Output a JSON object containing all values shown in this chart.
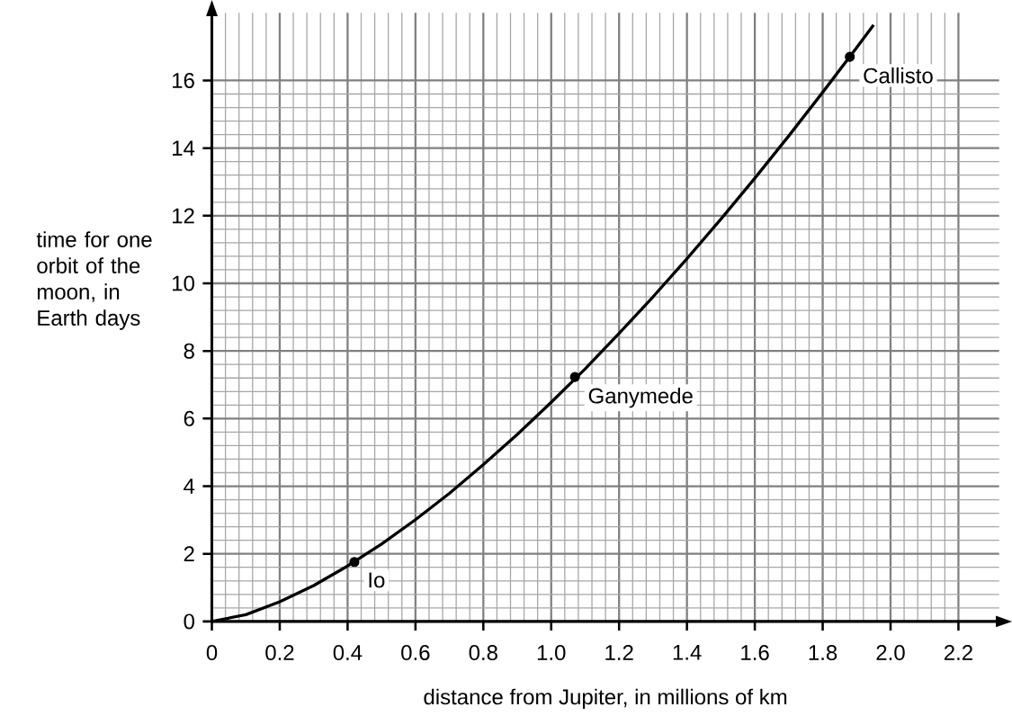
{
  "chart_data": {
    "type": "line",
    "xlabel": "distance from Jupiter, in millions of km",
    "ylabel": "time for one orbit of the moon, in Earth days",
    "xlim": [
      0,
      2.32
    ],
    "ylim": [
      0,
      18
    ],
    "xticks": [
      0,
      0.2,
      0.4,
      0.6,
      0.8,
      {
        "value": 1.0,
        "label": "1.0"
      },
      1.2,
      1.4,
      1.6,
      1.8,
      {
        "value": 2.0,
        "label": "2.0"
      },
      2.2
    ],
    "yticks": [
      0,
      2,
      4,
      6,
      8,
      10,
      12,
      14,
      16
    ],
    "grid": true,
    "series": [
      {
        "color": "#000000",
        "marker": "none",
        "x": [
          0,
          0.1,
          0.2,
          0.3,
          0.4,
          0.5,
          0.6,
          0.7,
          0.8,
          0.9,
          1.0,
          1.1,
          1.2,
          1.3,
          1.4,
          1.5,
          1.6,
          1.7,
          1.8,
          1.9,
          1.95
        ],
        "values": [
          0,
          0.2,
          0.58,
          1.06,
          1.64,
          2.29,
          3.01,
          3.79,
          4.64,
          5.53,
          6.48,
          7.47,
          8.52,
          9.6,
          10.73,
          11.9,
          13.11,
          14.36,
          15.65,
          16.97,
          17.64
        ]
      },
      {
        "type": "scatter",
        "color": "#000000",
        "marker": "circle",
        "x": [
          0.42,
          1.07,
          1.88
        ],
        "values": [
          1.76,
          7.23,
          16.7
        ]
      }
    ],
    "annotations": [
      {
        "text": "Io",
        "x": 0.42,
        "y": 1.76
      },
      {
        "text": "Ganymede",
        "x": 1.07,
        "y": 7.23
      },
      {
        "text": "Callisto",
        "x": 1.88,
        "y": 16.7
      }
    ]
  }
}
